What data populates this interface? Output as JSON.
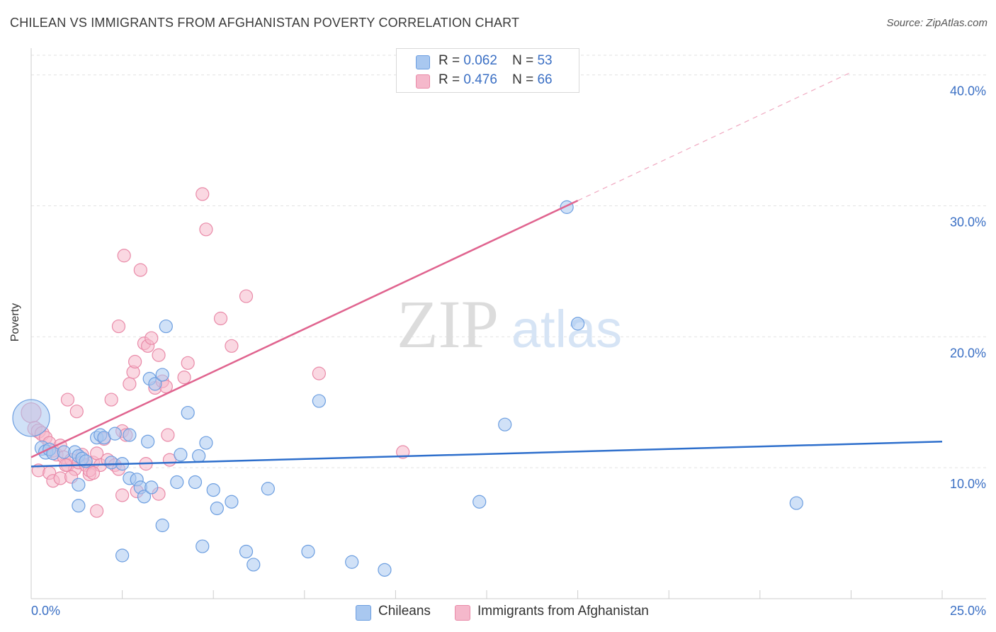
{
  "title": "CHILEAN VS IMMIGRANTS FROM AFGHANISTAN POVERTY CORRELATION CHART",
  "source": "Source: ZipAtlas.com",
  "watermark": {
    "zip": "ZIP",
    "atlas": "atlas"
  },
  "legend": {
    "r_label": "R =",
    "n_label": "N =",
    "entries": [
      {
        "r": "0.062",
        "n": "53",
        "color": "#a9c8f0"
      },
      {
        "r": "0.476",
        "n": "66",
        "color": "#f5b8cb"
      }
    ]
  },
  "bottom_legend": [
    "Chileans",
    "Immigrants from Afghanistan"
  ],
  "colors": {
    "blue_fill": "#a9c8f0",
    "blue_stroke": "#6c9ee0",
    "blue_line": "#2e6fcc",
    "pink_fill": "#f5b8cb",
    "pink_stroke": "#e98aa8",
    "pink_line": "#e0648f",
    "tick_label": "#3a6fc4",
    "grid": "#e2e2e2"
  },
  "chart_data": {
    "type": "scatter",
    "xlabel": "",
    "ylabel": "Poverty",
    "xlim": [
      0,
      25
    ],
    "ylim": [
      0,
      41.5
    ],
    "x_tick_labels": [
      "0.0%",
      "25.0%"
    ],
    "y_ticks": [
      10,
      20,
      30,
      40
    ],
    "y_tick_labels": [
      "10.0%",
      "20.0%",
      "30.0%",
      "40.0%"
    ],
    "grid": true,
    "legend_position": "top-center",
    "series": [
      {
        "name": "Chileans",
        "trend": {
          "x": [
            0,
            25
          ],
          "y": [
            10.1,
            12.0
          ],
          "style": "solid"
        },
        "points": [
          [
            0.0,
            13.8,
            26
          ],
          [
            0.3,
            11.5,
            10
          ],
          [
            0.4,
            11.2,
            10
          ],
          [
            0.5,
            11.4,
            9
          ],
          [
            0.6,
            11.1,
            9
          ],
          [
            0.9,
            11.2,
            9
          ],
          [
            1.2,
            11.2,
            9
          ],
          [
            1.3,
            10.9,
            9
          ],
          [
            1.4,
            10.7,
            9
          ],
          [
            1.5,
            10.5,
            9
          ],
          [
            1.8,
            12.3,
            9
          ],
          [
            1.9,
            12.5,
            9
          ],
          [
            2.0,
            12.3,
            9
          ],
          [
            2.2,
            10.4,
            9
          ],
          [
            2.3,
            12.6,
            9
          ],
          [
            2.5,
            10.3,
            9
          ],
          [
            2.7,
            9.2,
            9
          ],
          [
            2.9,
            9.1,
            9
          ],
          [
            3.0,
            8.5,
            9
          ],
          [
            3.1,
            7.8,
            9
          ],
          [
            3.2,
            12.0,
            9
          ],
          [
            3.3,
            8.5,
            9
          ],
          [
            3.25,
            16.8,
            9
          ],
          [
            3.4,
            16.4,
            9
          ],
          [
            3.6,
            17.1,
            9
          ],
          [
            3.7,
            20.8,
            9
          ],
          [
            3.6,
            5.6,
            9
          ],
          [
            4.0,
            8.9,
            9
          ],
          [
            4.1,
            11.0,
            9
          ],
          [
            4.3,
            14.2,
            9
          ],
          [
            4.5,
            8.9,
            9
          ],
          [
            4.6,
            10.9,
            9
          ],
          [
            4.8,
            11.9,
            9
          ],
          [
            4.7,
            4.0,
            9
          ],
          [
            5.0,
            8.3,
            9
          ],
          [
            5.1,
            6.9,
            9
          ],
          [
            5.5,
            7.4,
            9
          ],
          [
            5.9,
            3.6,
            9
          ],
          [
            6.1,
            2.6,
            9
          ],
          [
            6.5,
            8.4,
            9
          ],
          [
            7.6,
            3.6,
            9
          ],
          [
            7.9,
            15.1,
            9
          ],
          [
            8.8,
            2.8,
            9
          ],
          [
            9.7,
            2.2,
            9
          ],
          [
            12.3,
            7.4,
            9
          ],
          [
            13.0,
            13.3,
            9
          ],
          [
            14.7,
            29.9,
            9
          ],
          [
            15.0,
            21.0,
            9
          ],
          [
            21.0,
            7.3,
            9
          ],
          [
            1.3,
            7.1,
            9
          ],
          [
            2.5,
            3.3,
            9
          ],
          [
            1.3,
            8.7,
            9
          ],
          [
            2.7,
            12.5,
            9
          ]
        ]
      },
      {
        "name": "Immigrants from Afghanistan",
        "trend": {
          "x": [
            0,
            15
          ],
          "y": [
            10.8,
            30.4
          ],
          "style": "solid",
          "extension": {
            "x": [
              15,
              22.5
            ],
            "y": [
              30.4,
              40.2
            ],
            "style": "dashed"
          }
        },
        "points": [
          [
            0.0,
            14.2,
            14
          ],
          [
            0.1,
            13.0,
            10
          ],
          [
            0.2,
            12.8,
            10
          ],
          [
            0.3,
            12.6,
            10
          ],
          [
            0.4,
            12.3,
            9
          ],
          [
            0.5,
            11.9,
            9
          ],
          [
            0.6,
            11.3,
            9
          ],
          [
            0.7,
            11.0,
            9
          ],
          [
            0.8,
            11.7,
            9
          ],
          [
            0.9,
            10.8,
            9
          ],
          [
            1.0,
            10.2,
            9
          ],
          [
            1.1,
            10.6,
            9
          ],
          [
            1.2,
            9.9,
            9
          ],
          [
            1.3,
            10.4,
            9
          ],
          [
            1.4,
            11.0,
            9
          ],
          [
            1.5,
            10.2,
            9
          ],
          [
            1.6,
            9.5,
            9
          ],
          [
            1.7,
            10.4,
            9
          ],
          [
            1.8,
            11.1,
            9
          ],
          [
            1.9,
            10.2,
            9
          ],
          [
            2.0,
            12.2,
            9
          ],
          [
            2.1,
            10.6,
            9
          ],
          [
            2.2,
            15.2,
            9
          ],
          [
            2.3,
            10.2,
            9
          ],
          [
            2.4,
            20.8,
            9
          ],
          [
            2.5,
            12.8,
            9
          ],
          [
            2.6,
            12.5,
            9
          ],
          [
            2.55,
            26.2,
            9
          ],
          [
            2.7,
            16.4,
            9
          ],
          [
            2.8,
            17.3,
            9
          ],
          [
            2.85,
            18.1,
            9
          ],
          [
            3.0,
            25.1,
            9
          ],
          [
            3.1,
            19.5,
            9
          ],
          [
            3.2,
            19.3,
            9
          ],
          [
            3.3,
            19.9,
            9
          ],
          [
            3.4,
            16.1,
            9
          ],
          [
            3.5,
            18.6,
            9
          ],
          [
            3.6,
            16.6,
            9
          ],
          [
            3.7,
            16.2,
            9
          ],
          [
            3.8,
            10.6,
            9
          ],
          [
            3.75,
            12.5,
            9
          ],
          [
            4.2,
            16.9,
            9
          ],
          [
            4.3,
            18.0,
            9
          ],
          [
            4.7,
            30.9,
            9
          ],
          [
            4.8,
            28.2,
            9
          ],
          [
            5.2,
            21.4,
            9
          ],
          [
            5.5,
            19.3,
            9
          ],
          [
            5.9,
            23.1,
            9
          ],
          [
            7.9,
            17.2,
            9
          ],
          [
            10.2,
            11.2,
            9
          ],
          [
            0.2,
            9.8,
            9
          ],
          [
            0.5,
            9.6,
            9
          ],
          [
            0.6,
            9.0,
            9
          ],
          [
            0.8,
            9.2,
            9
          ],
          [
            1.1,
            9.3,
            9
          ],
          [
            1.6,
            9.8,
            9
          ],
          [
            1.7,
            9.6,
            9
          ],
          [
            1.8,
            6.7,
            9
          ],
          [
            2.4,
            9.9,
            9
          ],
          [
            2.5,
            7.9,
            9
          ],
          [
            2.9,
            8.2,
            9
          ],
          [
            3.5,
            8.0,
            9
          ],
          [
            3.15,
            10.3,
            9
          ],
          [
            1.0,
            15.2,
            9
          ],
          [
            1.25,
            14.3,
            9
          ],
          [
            0.95,
            10.2,
            9
          ]
        ]
      }
    ]
  }
}
